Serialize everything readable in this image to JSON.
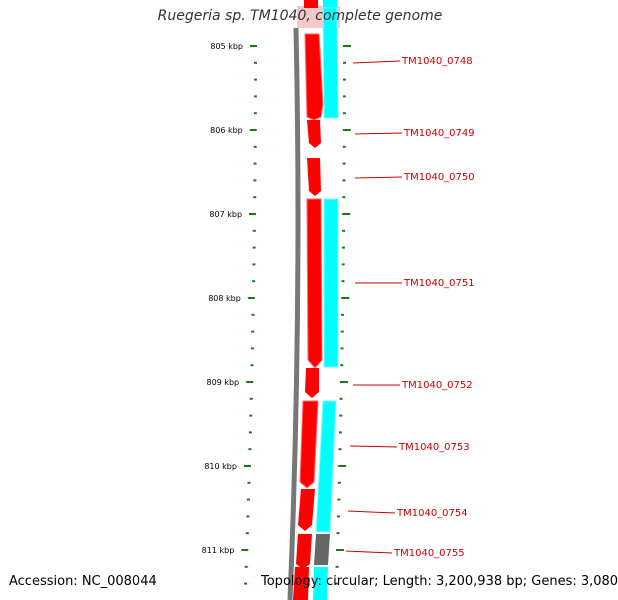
{
  "title": "Ruegeria sp. TM1040, complete genome",
  "accession": "Accession: NC_008044",
  "topology": "Topology: circular; Length: 3,200,938 bp; Genes: 3,080",
  "colors": {
    "scale": "#1a7a1a",
    "backbone": "#777777",
    "forward_gene": "#ff0000",
    "cds_feature": "#00ffff",
    "gray_feature": "#666666",
    "label": "#cc0000"
  },
  "scale_labels": [
    "805 kbp",
    "806 kbp",
    "807 kbp",
    "808 kbp",
    "809 kbp",
    "810 kbp",
    "811 kbp"
  ],
  "genes": [
    {
      "locus": "TM1040_0748"
    },
    {
      "locus": "TM1040_0749"
    },
    {
      "locus": "TM1040_0750"
    },
    {
      "locus": "TM1040_0751"
    },
    {
      "locus": "TM1040_0752"
    },
    {
      "locus": "TM1040_0753"
    },
    {
      "locus": "TM1040_0754"
    },
    {
      "locus": "TM1040_0755"
    }
  ]
}
